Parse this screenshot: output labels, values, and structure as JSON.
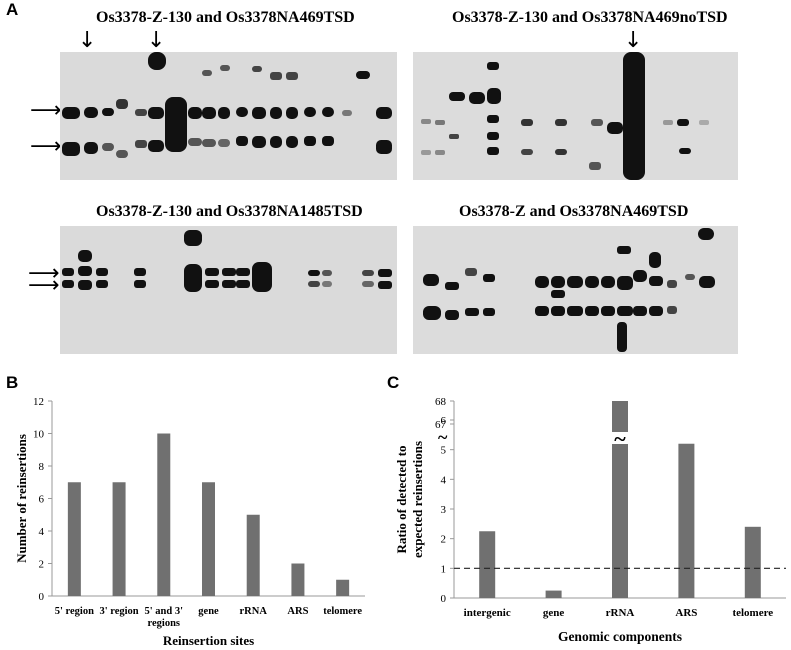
{
  "panel_labels": {
    "a": "A",
    "b": "B",
    "c": "C"
  },
  "blots": [
    {
      "title": "Os3378-Z-130 and Os3378NA469TSD"
    },
    {
      "title": "Os3378-Z-130 and Os3378NA469noTSD"
    },
    {
      "title": "Os3378-Z-130 and Os3378NA1485TSD"
    },
    {
      "title": "Os3378-Z and Os3378NA469TSD"
    }
  ],
  "icons": {
    "down_arrow": "down-arrow-icon",
    "side_arrow": "right-arrow-icon"
  },
  "chart_data": [
    {
      "type": "bar",
      "categories": [
        "5' region",
        "3' region",
        "5' and 3' regions",
        "gene",
        "rRNA",
        "ARS",
        "telomere"
      ],
      "values": [
        7,
        7,
        10,
        7,
        5,
        2,
        1
      ],
      "xlabel": "Reinsertion sites",
      "ylabel": "Number of reinsertions",
      "ylim": [
        0,
        12
      ],
      "yticks": [
        "0",
        "2",
        "4",
        "6",
        "8",
        "10",
        "12"
      ],
      "bar_color": "#707070"
    },
    {
      "type": "bar",
      "categories": [
        "intergenic",
        "gene",
        "rRNA",
        "ARS",
        "telomere"
      ],
      "values": [
        2.25,
        0.25,
        68,
        5.2,
        2.4
      ],
      "xlabel": "Genomic components",
      "ylabel": "Ratio of detected to expected reinsertions",
      "yticks": [
        "0",
        "1",
        "2",
        "3",
        "4",
        "5",
        "6",
        "67",
        "68"
      ],
      "axis_break": "~",
      "reference_line": 1,
      "bar_color": "#707070"
    }
  ]
}
